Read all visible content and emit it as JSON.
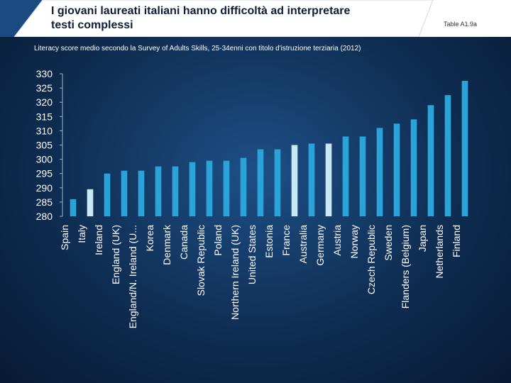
{
  "header": {
    "title_line1": "I giovani laureati italiani hanno difficoltà ad interpretare",
    "title_line2": "testi complessi",
    "table_ref": "Table A1.9a"
  },
  "colors": {
    "bar": "#2aa4d8",
    "bar_highlight": "#c8e8f6",
    "axis": "#9fb3c8",
    "background": "#0f2d52"
  },
  "chart_data": {
    "type": "bar",
    "title": "Literacy score medio secondo la Survey of Adults Skills, 25-34enni con titolo d'istruzione terziaria (2012)",
    "xlabel": "",
    "ylabel": "",
    "ylim": [
      280,
      330
    ],
    "yticks": [
      280,
      285,
      290,
      295,
      300,
      305,
      310,
      315,
      320,
      325,
      330
    ],
    "categories": [
      "Spain",
      "Italy",
      "Ireland",
      "England (UK)",
      "England/N. Ireland (U...",
      "Korea",
      "Denmark",
      "Canada",
      "Slovak Republic",
      "Poland",
      "Northern Ireland (UK)",
      "United States",
      "Estonia",
      "France",
      "Australia",
      "Germany",
      "Austria",
      "Norway",
      "Czech Republic",
      "Sweden",
      "Flanders (Belgium)",
      "Japan",
      "Netherlands",
      "Finland"
    ],
    "values": [
      286,
      289.5,
      295,
      296,
      296,
      297.5,
      297.5,
      299,
      299.5,
      299.5,
      300.5,
      303.5,
      303.5,
      305,
      305.5,
      305.5,
      308,
      308,
      311,
      312.5,
      314,
      319,
      322.5,
      327.5
    ],
    "highlighted": [
      "Italy",
      "France",
      "Germany"
    ]
  }
}
